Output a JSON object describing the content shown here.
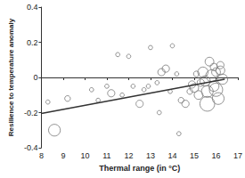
{
  "chart_data": {
    "type": "scatter",
    "x_label": "Thermal range (in °C)",
    "y_label": "Resilience to temperature anomaly",
    "xlim": [
      8,
      17
    ],
    "xticks": [
      8,
      9,
      10,
      11,
      12,
      13,
      14,
      15,
      16,
      17
    ],
    "ylim": [
      -0.4,
      0.4
    ],
    "yticks": [
      -0.4,
      -0.2,
      0,
      0.2,
      0.4
    ],
    "grid": false,
    "series": [
      {
        "type": "scatter",
        "color": "#777777",
        "marker": "circle",
        "x": [
          8.6,
          8.3,
          9.2,
          10.3,
          10.6,
          11.0,
          11.2,
          11.5,
          11.7,
          12.0,
          12.2,
          12.5,
          12.7,
          12.9,
          13.0,
          13.3,
          13.4,
          13.5,
          13.7,
          13.9,
          14.0,
          14.2,
          14.3,
          14.4,
          14.6,
          14.8,
          14.9,
          15.0,
          15.1,
          15.2,
          15.3,
          15.4,
          15.5,
          15.6,
          15.7,
          15.8,
          15.9,
          15.9,
          16.0,
          16.1,
          16.2,
          16.3,
          16.2,
          15.6,
          16.0
        ],
        "values": [
          -0.3,
          -0.14,
          -0.12,
          -0.07,
          -0.13,
          -0.05,
          -0.09,
          0.13,
          -0.1,
          0.12,
          -0.05,
          -0.15,
          -0.07,
          -0.05,
          0.17,
          -0.03,
          -0.2,
          0.03,
          0.05,
          -0.08,
          0.18,
          0.02,
          -0.32,
          -0.13,
          -0.15,
          -0.08,
          -0.04,
          -0.06,
          0.02,
          -0.1,
          -0.03,
          0.03,
          -0.02,
          -0.08,
          0.09,
          0.01,
          -0.05,
          0.06,
          0.03,
          -0.12,
          0.07,
          -0.01,
          0.04,
          -0.15,
          -0.07
        ],
        "sizes": [
          6,
          1,
          2,
          1,
          1,
          1,
          3,
          1,
          1,
          1,
          1,
          3,
          1,
          1,
          1,
          1,
          1,
          3,
          3,
          1,
          1,
          1,
          1,
          2,
          3,
          2,
          3,
          4,
          2,
          4,
          3,
          5,
          5,
          6,
          4,
          6,
          5,
          3,
          4,
          6,
          3,
          5,
          4,
          8,
          7
        ]
      },
      {
        "type": "line",
        "color": "#333333",
        "line_style": "solid",
        "x": [
          8,
          16.4
        ],
        "values": [
          -0.205,
          -0.01
        ]
      }
    ]
  }
}
